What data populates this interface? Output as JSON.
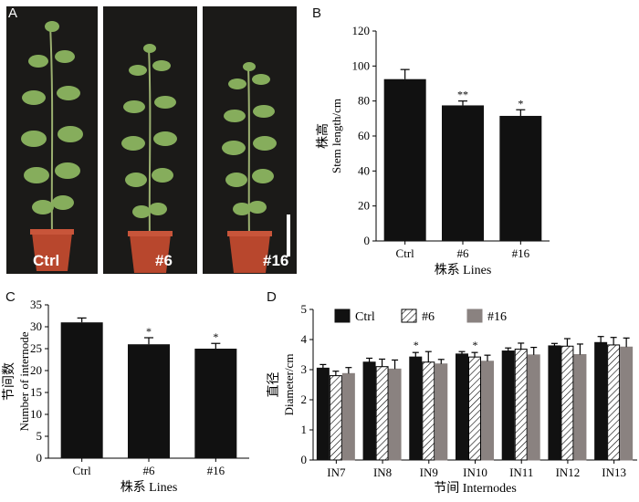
{
  "panels": {
    "a": "A",
    "b": "B",
    "c": "C",
    "d": "D"
  },
  "photos": [
    {
      "label": "Ctrl"
    },
    {
      "label": "#6"
    },
    {
      "label": "#16"
    }
  ],
  "colors": {
    "bar_dark": "#111111",
    "bar_grey": "#8a8280",
    "leaf": "#7fa65a",
    "pot": "#b8472d"
  },
  "chart_data": [
    {
      "panel": "B",
      "type": "bar",
      "categories": [
        "Ctrl",
        "#6",
        "#16"
      ],
      "values": [
        92.5,
        77.5,
        71.5
      ],
      "errors": [
        5.5,
        2.5,
        3.5
      ],
      "significance": [
        "",
        "**",
        "*"
      ],
      "ylabel_cn": "株高",
      "ylabel": "Stem length/cm",
      "xlabel": "株系 Lines",
      "ylim": [
        0,
        120
      ],
      "yticks": [
        0,
        20,
        40,
        60,
        80,
        100,
        120
      ]
    },
    {
      "panel": "C",
      "type": "bar",
      "categories": [
        "Ctrl",
        "#6",
        "#16"
      ],
      "values": [
        31,
        26,
        25
      ],
      "errors": [
        1,
        1.5,
        1.2
      ],
      "significance": [
        "",
        "*",
        "*"
      ],
      "ylabel_cn": "节间数",
      "ylabel": "Number of internode",
      "xlabel": "株系 Lines",
      "ylim": [
        0,
        35
      ],
      "yticks": [
        0,
        5,
        10,
        15,
        20,
        25,
        30,
        35
      ]
    },
    {
      "panel": "D",
      "type": "bar",
      "categories": [
        "IN7",
        "IN8",
        "IN9",
        "IN10",
        "IN11",
        "IN12",
        "IN13"
      ],
      "series": [
        {
          "name": "Ctrl",
          "values": [
            3.05,
            3.25,
            3.42,
            3.52,
            3.62,
            3.79,
            3.9
          ],
          "errors": [
            0.12,
            0.13,
            0.15,
            0.08,
            0.1,
            0.08,
            0.2
          ]
        },
        {
          "name": "#6",
          "values": [
            2.8,
            3.1,
            3.25,
            3.42,
            3.68,
            3.78,
            3.82
          ],
          "errors": [
            0.15,
            0.25,
            0.35,
            0.15,
            0.2,
            0.25,
            0.25
          ]
        },
        {
          "name": "#16",
          "values": [
            2.87,
            3.02,
            3.19,
            3.28,
            3.49,
            3.5,
            3.75
          ],
          "errors": [
            0.2,
            0.3,
            0.15,
            0.2,
            0.25,
            0.35,
            0.3
          ]
        }
      ],
      "significance": [
        {
          "category": "IN9",
          "series": "Ctrl",
          "mark": "*"
        },
        {
          "category": "IN10",
          "series": "#6",
          "mark": "*"
        }
      ],
      "ylabel_cn": "直径",
      "ylabel": "Diameter/cm",
      "xlabel": "节间 Internodes",
      "ylim": [
        0,
        5
      ],
      "yticks": [
        0,
        1,
        2,
        3,
        4,
        5
      ],
      "legend_position": "top-left"
    }
  ]
}
